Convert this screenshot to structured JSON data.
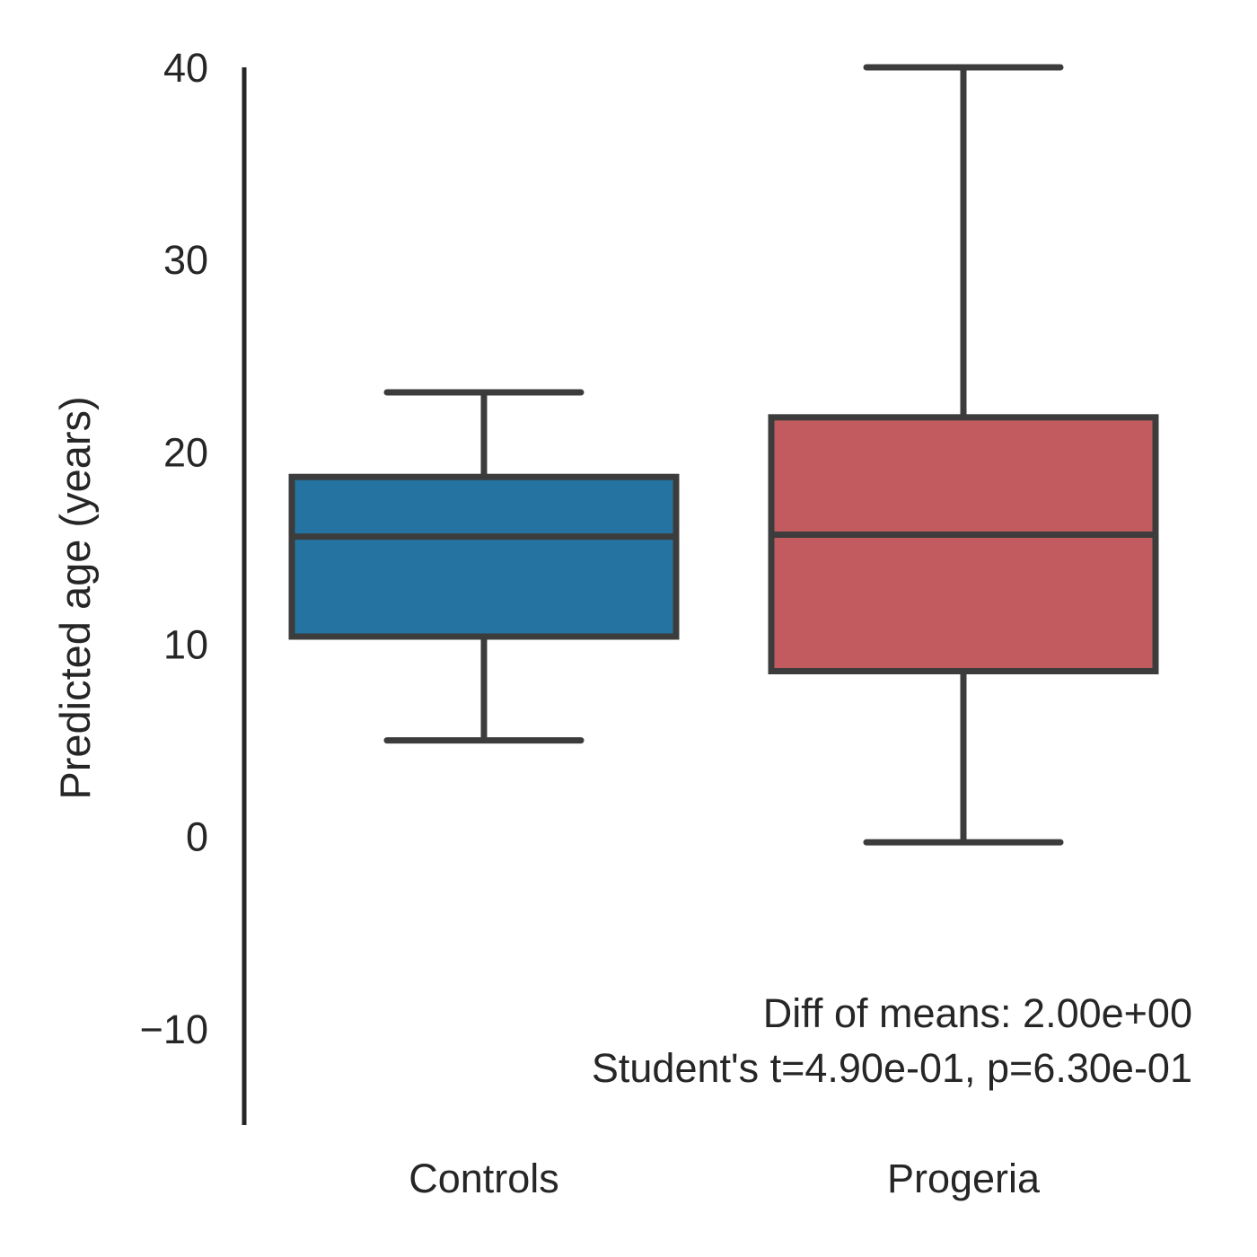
{
  "chart_data": {
    "type": "box",
    "ylabel": "Predicted age (years)",
    "xlabel": "",
    "ylim": [
      -15,
      40
    ],
    "y_ticks": [
      -10,
      0,
      10,
      20,
      30,
      40
    ],
    "y_tick_labels": [
      "−10",
      "0",
      "10",
      "20",
      "30",
      "40"
    ],
    "grid": false,
    "categories": [
      "Controls",
      "Progeria"
    ],
    "boxes": [
      {
        "category": "Controls",
        "whisker_low": 5.0,
        "q1": 10.4,
        "median": 15.6,
        "q3": 18.7,
        "whisker_high": 23.1,
        "color": "#2573a0"
      },
      {
        "category": "Progeria",
        "whisker_low": -0.3,
        "q1": 8.6,
        "median": 15.7,
        "q3": 21.8,
        "whisker_high": 40.0,
        "color": "#c25b60"
      }
    ],
    "annotations": [
      "Diff of means: 2.00e+00",
      "Student's t=4.90e-01, p=6.30e-01"
    ],
    "colors": {
      "edge": "#3c3c3c",
      "axis": "#262626"
    }
  }
}
